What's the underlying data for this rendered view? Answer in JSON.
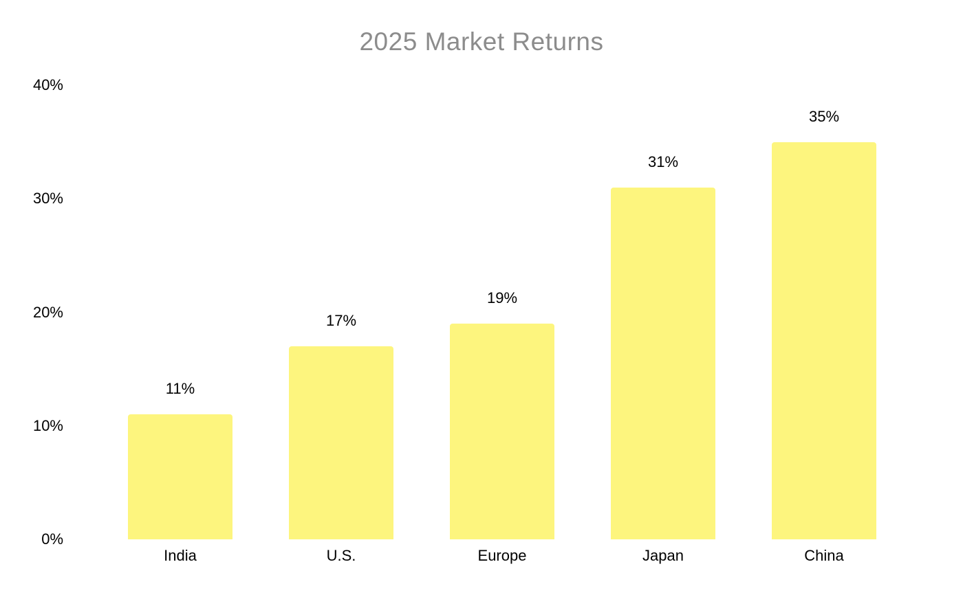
{
  "chart_data": {
    "type": "bar",
    "title": "2025 Market Returns",
    "categories": [
      "India",
      "U.S.",
      "Europe",
      "Japan",
      "China"
    ],
    "values": [
      11,
      17,
      19,
      31,
      35
    ],
    "data_labels": [
      "11%",
      "17%",
      "19%",
      "31%",
      "35%"
    ],
    "y_ticks": [
      {
        "value": 0,
        "label": "0%"
      },
      {
        "value": 10,
        "label": "10%"
      },
      {
        "value": 20,
        "label": "20%"
      },
      {
        "value": 30,
        "label": "30%"
      },
      {
        "value": 40,
        "label": "40%"
      }
    ],
    "ylim": [
      0,
      40
    ],
    "xlabel": "",
    "ylabel": "",
    "grid": false,
    "legend": false,
    "colors": {
      "bar_fill": "#FDF57E",
      "title_text": "#8C8C8C",
      "label_text": "#000000",
      "background": "#FFFFFF"
    }
  }
}
